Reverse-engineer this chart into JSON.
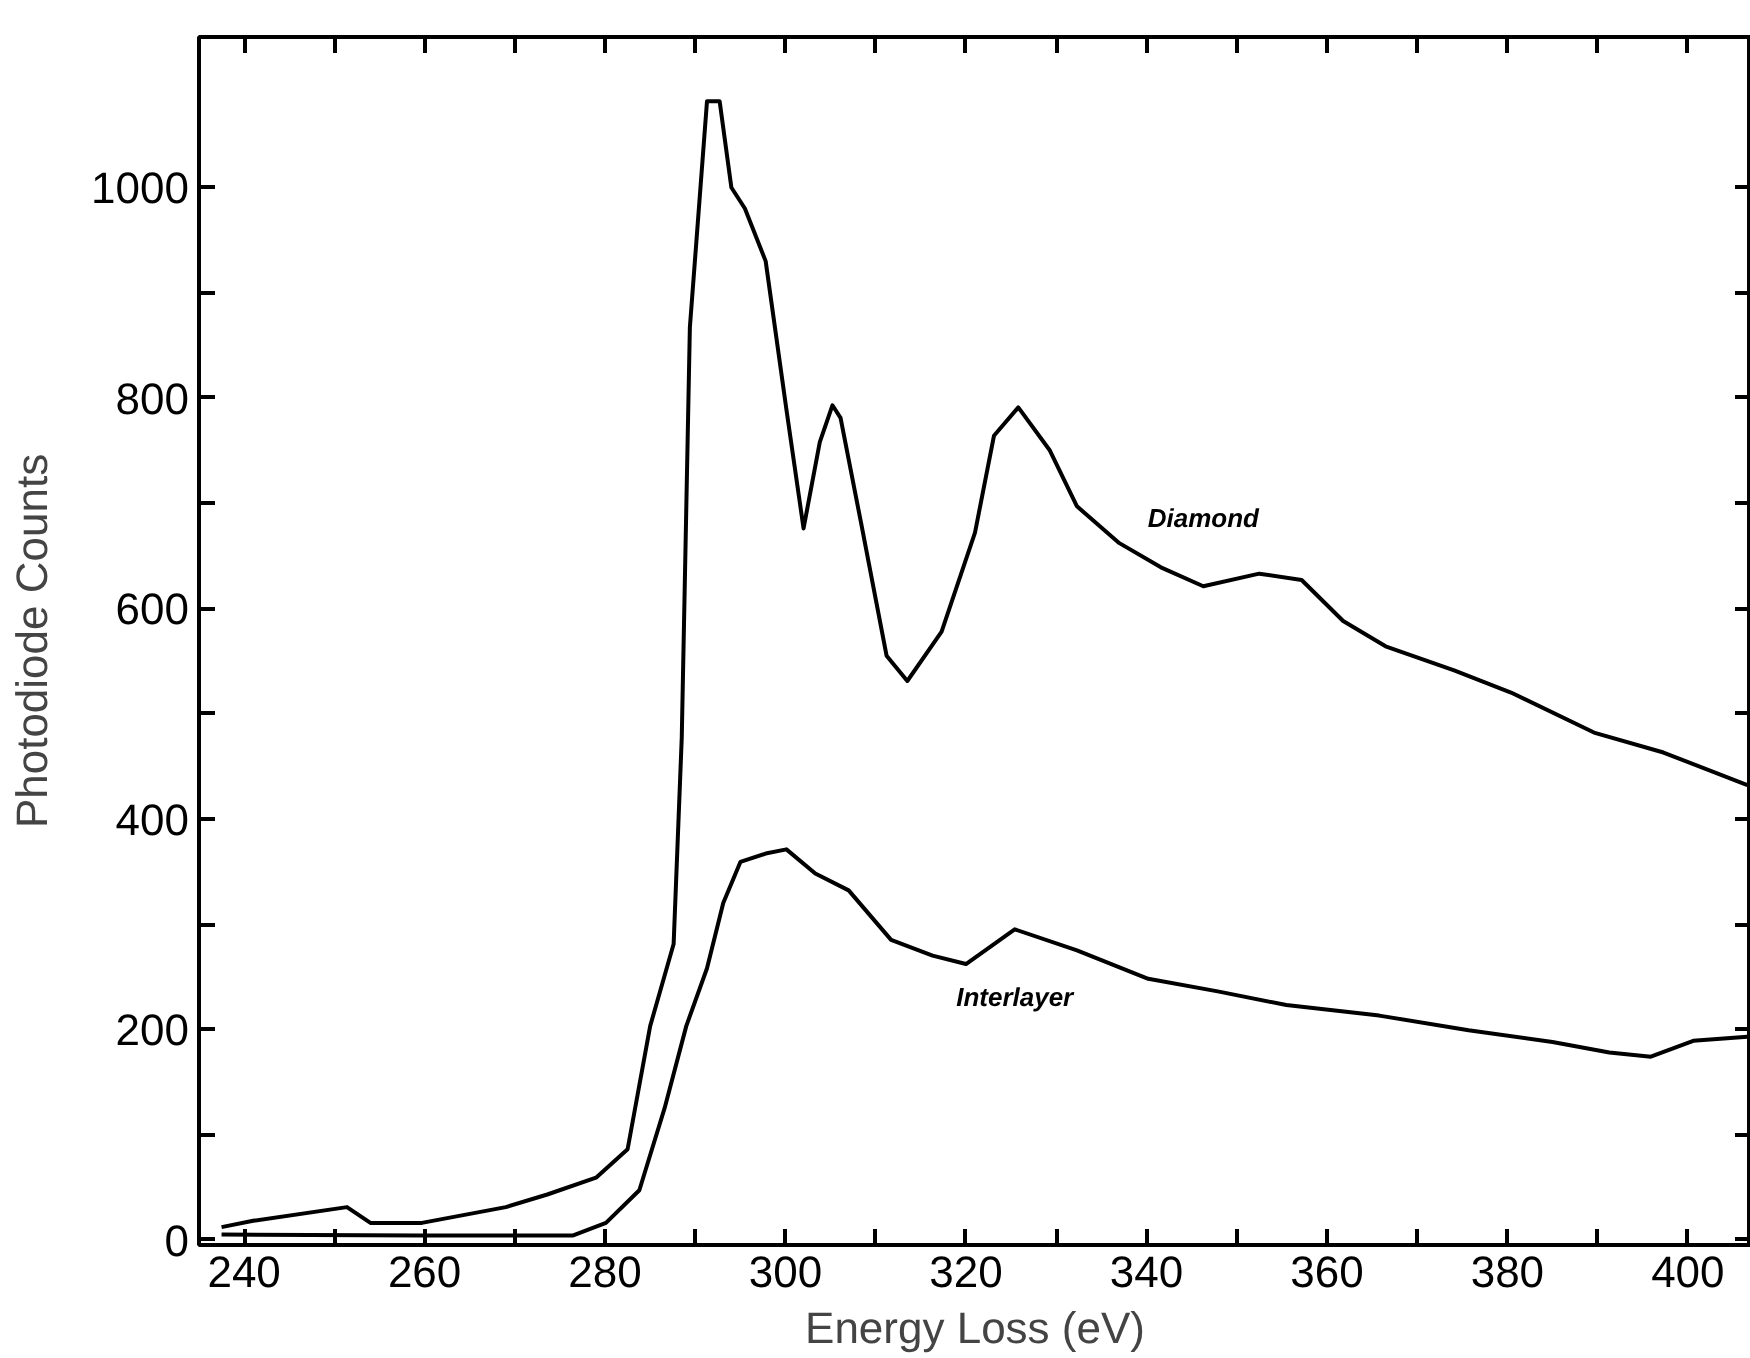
{
  "chart_data": {
    "type": "line",
    "xlabel": "Energy Loss (eV)",
    "ylabel": "Photodiode Counts",
    "xlim": [
      235,
      407
    ],
    "ylim": [
      -5,
      1143
    ],
    "xticks": [
      240,
      {
        "value": 250,
        "label": null
      },
      260,
      {
        "value": 270,
        "label": null
      },
      280,
      {
        "value": 290,
        "label": null
      },
      300,
      {
        "value": 310,
        "label": null
      },
      320,
      {
        "value": 330,
        "label": null
      },
      340,
      {
        "value": 350,
        "label": null
      },
      360,
      {
        "value": 370,
        "label": null
      },
      380,
      {
        "value": 390,
        "label": null
      },
      400
    ],
    "yticks": [
      0,
      {
        "value": 100,
        "label": null
      },
      200,
      {
        "value": 300,
        "label": null
      },
      400,
      {
        "value": 500,
        "label": null
      },
      600,
      {
        "value": 700,
        "label": null
      },
      800,
      {
        "value": 900,
        "label": null
      },
      1000
    ],
    "grid": false,
    "legend": false,
    "marker": "none",
    "line_style": "solid",
    "series": [
      {
        "name": "Diamond",
        "color": "#000000",
        "x": [
          237.5,
          241,
          251.4,
          254,
          259.7,
          269,
          273.6,
          279,
          282.5,
          285,
          287.6,
          288.5,
          289.4,
          291.3,
          292.7,
          294,
          295.5,
          297.8,
          300.1,
          302,
          303.8,
          305.2,
          306.1,
          308.4,
          311.2,
          313.5,
          317.3,
          321,
          323.1,
          325.8,
          329.3,
          332.3,
          337,
          341.6,
          346.3,
          352.5,
          357.2,
          361.8,
          366.5,
          374.1,
          380.4,
          389.6,
          397.3,
          406.6
        ],
        "values": [
          12,
          18,
          31,
          16,
          16,
          31,
          43,
          59,
          86,
          203,
          281,
          477,
          867,
          1082,
          1082,
          1000,
          980,
          930,
          789,
          676,
          758,
          793,
          781,
          680,
          555,
          531,
          578,
          672,
          764,
          791,
          750,
          697,
          662,
          639,
          621,
          633,
          627,
          588,
          564,
          541,
          520,
          482,
          463,
          432
        ]
      },
      {
        "name": "Interlayer",
        "color": "#000000",
        "x": [
          237.5,
          259.7,
          276.4,
          280.1,
          283.8,
          286.6,
          289,
          291.3,
          293.1,
          295,
          297.8,
          300.1,
          303.3,
          307,
          311.7,
          316.3,
          320,
          325.4,
          332.3,
          340.2,
          347.9,
          355.5,
          365.8,
          375.7,
          385,
          391.3,
          395.9,
          400.6,
          406.6
        ],
        "values": [
          5,
          4,
          4,
          16,
          47,
          125,
          203,
          258,
          320,
          359,
          367,
          371,
          348,
          332,
          285,
          270,
          262,
          295,
          275,
          248,
          236,
          223,
          213,
          199,
          188,
          178,
          174,
          189,
          193
        ]
      }
    ]
  }
}
